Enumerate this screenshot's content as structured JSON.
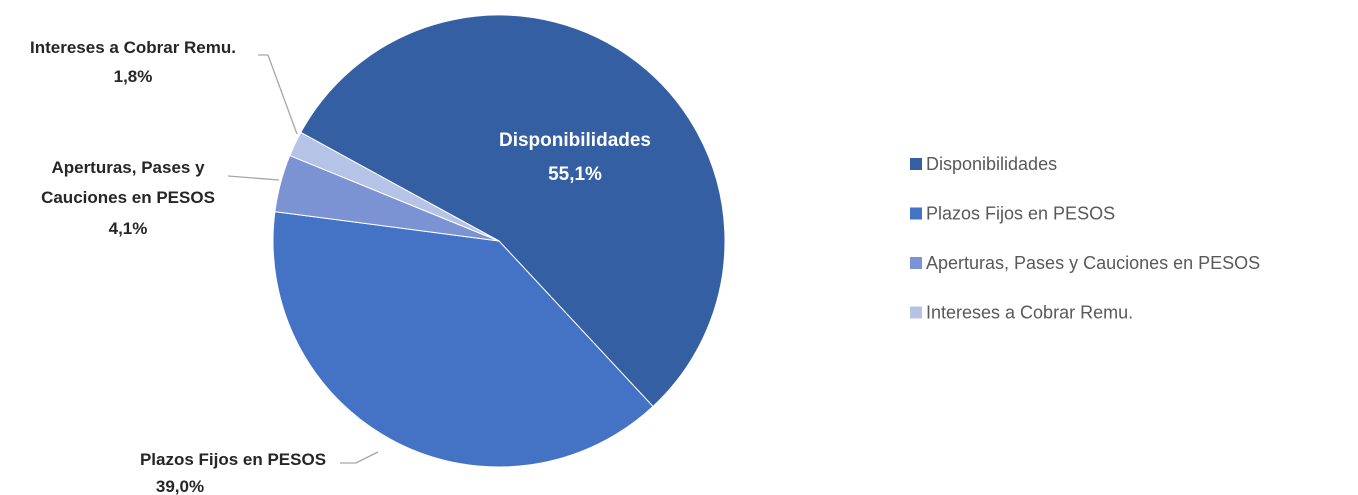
{
  "chart_data": {
    "type": "pie",
    "categories": [
      "Disponibilidades",
      "Plazos Fijos en PESOS",
      "Aperturas, Pases y Cauciones en PESOS",
      "Intereses a Cobrar Remu."
    ],
    "values": [
      55.1,
      39.0,
      4.1,
      1.8
    ],
    "value_labels": [
      "55,1%",
      "39,0%",
      "4,1%",
      "1,8%"
    ],
    "colors": [
      "#355fa3",
      "#4472c4",
      "#7b93d3",
      "#b4c3e6"
    ],
    "legend": "right"
  }
}
